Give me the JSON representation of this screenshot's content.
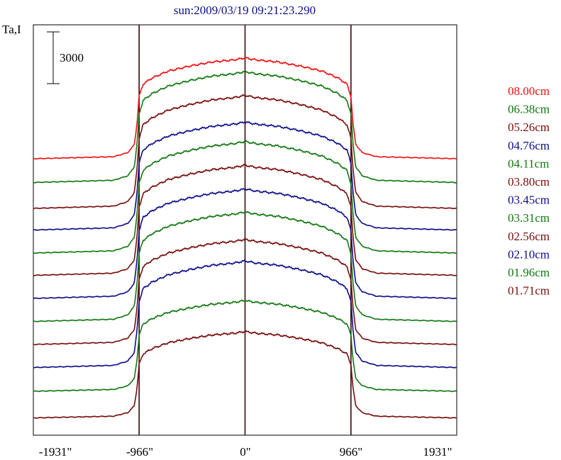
{
  "chart_data": {
    "type": "line",
    "title": "sun:2009/03/19 09:21:23.290",
    "ylabel": "Ta,I",
    "scale_bar_label": "3000",
    "scale_bar_value": 3000,
    "xlim": [
      -1931,
      1931
    ],
    "x_ticks": [
      -1931,
      -966,
      0,
      966,
      1931
    ],
    "x_tick_labels": [
      "-1931\"",
      "-966\"",
      "0\"",
      "966\"",
      "1931\""
    ],
    "vertical_lines_at": [
      -966,
      0,
      966
    ],
    "profile_template": {
      "x": [
        -1931,
        -1200,
        -1070,
        -1010,
        -985,
        -966,
        -930,
        -850,
        -700,
        -500,
        -300,
        -100,
        0,
        100,
        300,
        500,
        700,
        850,
        930,
        966,
        985,
        1010,
        1070,
        1200,
        1931
      ],
      "rel": [
        0,
        0.02,
        0.06,
        0.14,
        0.35,
        0.62,
        0.74,
        0.8,
        0.87,
        0.92,
        0.96,
        0.98,
        1.0,
        0.98,
        0.96,
        0.92,
        0.87,
        0.8,
        0.74,
        0.62,
        0.35,
        0.14,
        0.06,
        0.02,
        0
      ]
    },
    "series": [
      {
        "name": "08.00cm",
        "color": "#ee1111",
        "baseline": 38400,
        "peak": 52400
      },
      {
        "name": "06.38cm",
        "color": "#117711",
        "baseline": 35100,
        "peak": 50500
      },
      {
        "name": "05.26cm",
        "color": "#770d0d",
        "baseline": 31500,
        "peak": 47200
      },
      {
        "name": "04.76cm",
        "color": "#0d0d88",
        "baseline": 28500,
        "peak": 43500
      },
      {
        "name": "04.11cm",
        "color": "#117711",
        "baseline": 25300,
        "peak": 40800
      },
      {
        "name": "03.80cm",
        "color": "#770d0d",
        "baseline": 22200,
        "peak": 37500
      },
      {
        "name": "03.45cm",
        "color": "#0d0d88",
        "baseline": 19000,
        "peak": 34200
      },
      {
        "name": "03.31cm",
        "color": "#117711",
        "baseline": 15800,
        "peak": 31000
      },
      {
        "name": "02.56cm",
        "color": "#770d0d",
        "baseline": 12600,
        "peak": 27200
      },
      {
        "name": "02.10cm",
        "color": "#0d0d88",
        "baseline": 9400,
        "peak": 24200
      },
      {
        "name": "01.96cm",
        "color": "#117711",
        "baseline": 6100,
        "peak": 18700
      },
      {
        "name": "01.71cm",
        "color": "#770d0d",
        "baseline": 2400,
        "peak": 14400
      }
    ],
    "ylim": [
      0,
      57000
    ]
  }
}
